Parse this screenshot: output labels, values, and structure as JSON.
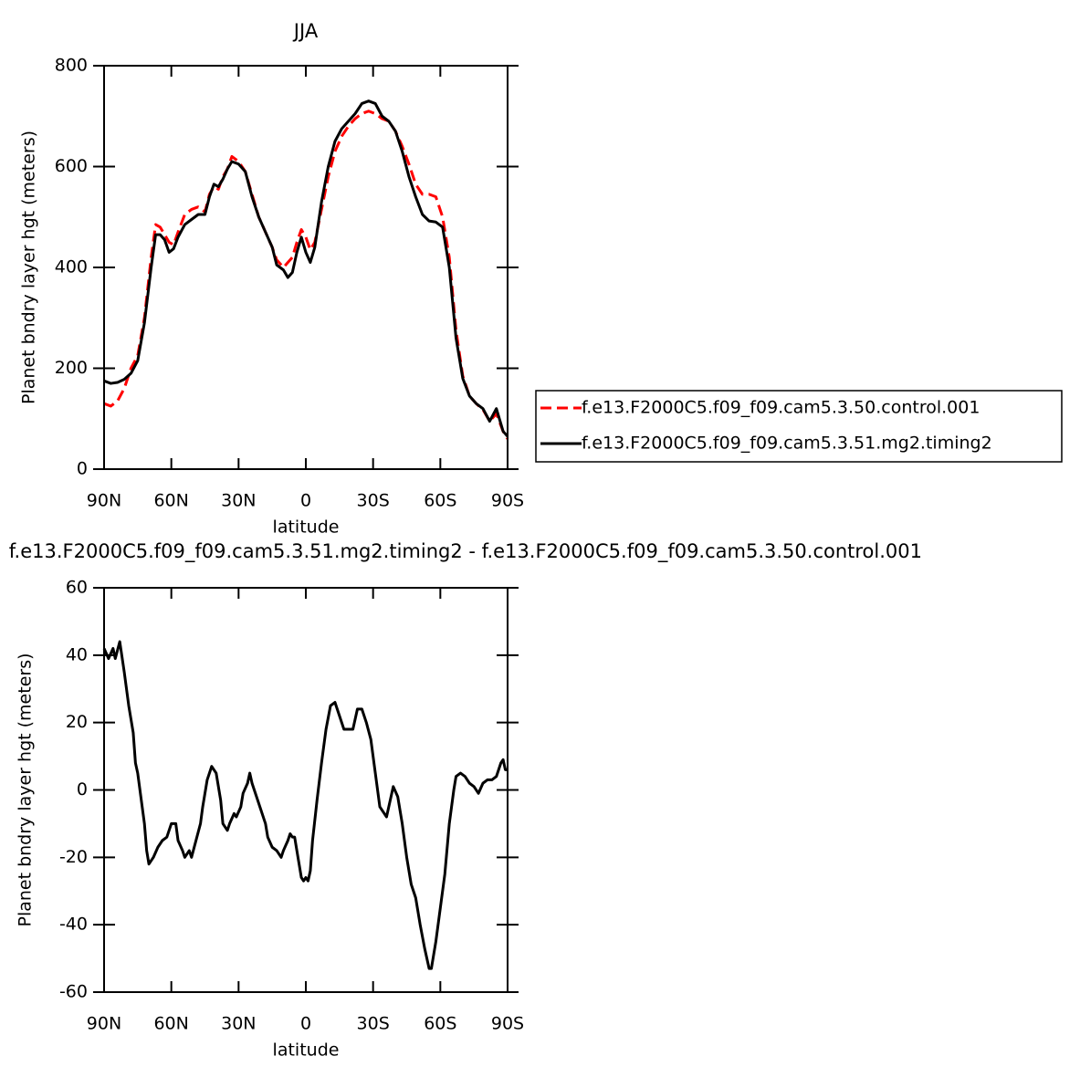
{
  "chart_data": [
    {
      "type": "line",
      "title": "JJA",
      "x_label": "latitude",
      "y_label": "Planet bndry layer hgt (meters)",
      "x": [
        90,
        87,
        84,
        81,
        78,
        75,
        72,
        69,
        67,
        65,
        63,
        61,
        59,
        57,
        54,
        51,
        48,
        45,
        43,
        41,
        39,
        37,
        35,
        33,
        30,
        27,
        24,
        21,
        18,
        15,
        13,
        10,
        8,
        6,
        4,
        2,
        0,
        -2,
        -4,
        -7,
        -10,
        -13,
        -16,
        -19,
        -22,
        -25,
        -28,
        -31,
        -34,
        -37,
        -40,
        -43,
        -46,
        -49,
        -52,
        -55,
        -58,
        -61,
        -64,
        -67,
        -70,
        -73,
        -76,
        -79,
        -82,
        -85,
        -88,
        -90
      ],
      "series": [
        {
          "name": "f.e13.F2000C5.f09_f09.cam5.3.50.control.001",
          "color": "#ff0000",
          "dash": true,
          "values": [
            130,
            125,
            135,
            160,
            200,
            225,
            300,
            420,
            485,
            480,
            465,
            450,
            445,
            470,
            505,
            515,
            520,
            510,
            545,
            560,
            555,
            580,
            595,
            620,
            610,
            590,
            545,
            500,
            470,
            440,
            415,
            400,
            410,
            420,
            450,
            475,
            460,
            435,
            450,
            515,
            580,
            630,
            660,
            680,
            695,
            705,
            710,
            705,
            695,
            690,
            670,
            640,
            605,
            565,
            545,
            545,
            540,
            500,
            420,
            275,
            185,
            145,
            130,
            118,
            95,
            110,
            75,
            60
          ]
        },
        {
          "name": "f.e13.F2000C5.f09_f09.cam5.3.51.mg2.timing2",
          "color": "#000000",
          "dash": false,
          "values": [
            175,
            170,
            172,
            178,
            190,
            215,
            290,
            400,
            465,
            465,
            455,
            430,
            437,
            460,
            485,
            495,
            505,
            505,
            540,
            565,
            560,
            575,
            595,
            610,
            605,
            590,
            540,
            500,
            470,
            440,
            405,
            395,
            380,
            390,
            430,
            460,
            430,
            410,
            440,
            530,
            600,
            650,
            675,
            690,
            705,
            725,
            730,
            725,
            700,
            690,
            670,
            630,
            580,
            540,
            505,
            492,
            490,
            480,
            400,
            260,
            180,
            145,
            130,
            120,
            95,
            120,
            75,
            65
          ]
        }
      ],
      "xlim": [
        90,
        -90
      ],
      "xticks": [
        {
          "value": 90,
          "label": "90N"
        },
        {
          "value": 60,
          "label": "60N"
        },
        {
          "value": 30,
          "label": "30N"
        },
        0,
        {
          "value": -30,
          "label": "30S"
        },
        {
          "value": -60,
          "label": "60S"
        },
        {
          "value": -90,
          "label": "90S"
        }
      ],
      "ylim": [
        0,
        800
      ],
      "yticks": [
        0,
        200,
        400,
        600,
        800
      ],
      "legend": "right"
    },
    {
      "type": "line",
      "title": "f.e13.F2000C5.f09_f09.cam5.3.51.mg2.timing2 - f.e13.F2000C5.f09_f09.cam5.3.50.control.001",
      "x_label": "latitude",
      "y_label": "Planet bndry layer hgt (meters)",
      "x": [
        90,
        88,
        86,
        85,
        83,
        81,
        79,
        77,
        76,
        75,
        73,
        72,
        71,
        70,
        68,
        66,
        64,
        62,
        60,
        58,
        57,
        55,
        54,
        52,
        51,
        49,
        47,
        46,
        44,
        42,
        40,
        38,
        37,
        35,
        34,
        32,
        31,
        29,
        28,
        26,
        25,
        24,
        22,
        20,
        18,
        17,
        15,
        13,
        11,
        10,
        8,
        7,
        6,
        5,
        3,
        2,
        1,
        0,
        -1,
        -2,
        -3,
        -5,
        -7,
        -9,
        -11,
        -13,
        -15,
        -17,
        -19,
        -21,
        -23,
        -25,
        -27,
        -29,
        -31,
        -33,
        -35,
        -36,
        -37,
        -39,
        -41,
        -43,
        -45,
        -47,
        -49,
        -51,
        -53,
        -55,
        -56,
        -58,
        -60,
        -62,
        -64,
        -66,
        -67,
        -69,
        -71,
        -73,
        -75,
        -77,
        -79,
        -81,
        -83,
        -85,
        -87,
        -88,
        -89,
        -90
      ],
      "series": [
        {
          "color": "#000000",
          "values": [
            42,
            39,
            42,
            39,
            44,
            35,
            25,
            17,
            8,
            5,
            -5,
            -10,
            -18,
            -22,
            -20,
            -17,
            -15,
            -14,
            -10,
            -10,
            -15,
            -18,
            -20,
            -18,
            -20,
            -15,
            -10,
            -5,
            3,
            7,
            5,
            -3,
            -10,
            -12,
            -10,
            -7,
            -8,
            -5,
            -1,
            2,
            5,
            2,
            -2,
            -6,
            -10,
            -14,
            -17,
            -18,
            -20,
            -18,
            -15,
            -13,
            -14,
            -14,
            -22,
            -26,
            -27,
            -26,
            -27,
            -24,
            -15,
            -3,
            8,
            18,
            25,
            26,
            22,
            18,
            18,
            18,
            24,
            24,
            20,
            15,
            5,
            -5,
            -7,
            -8,
            -5,
            1,
            -2,
            -10,
            -20,
            -28,
            -32,
            -40,
            -47,
            -53,
            -53,
            -45,
            -35,
            -25,
            -10,
            0,
            4,
            5,
            4,
            2,
            1,
            -1,
            2,
            3,
            3,
            4,
            8,
            9,
            6,
            6
          ]
        }
      ],
      "xlim": [
        90,
        -90
      ],
      "xticks": [
        {
          "value": 90,
          "label": "90N"
        },
        {
          "value": 60,
          "label": "60N"
        },
        {
          "value": 30,
          "label": "30N"
        },
        0,
        {
          "value": -30,
          "label": "30S"
        },
        {
          "value": -60,
          "label": "60S"
        },
        {
          "value": -90,
          "label": "90S"
        }
      ],
      "ylim": [
        -60,
        60
      ],
      "yticks": [
        -60,
        -40,
        -20,
        0,
        20,
        40,
        60
      ]
    }
  ]
}
